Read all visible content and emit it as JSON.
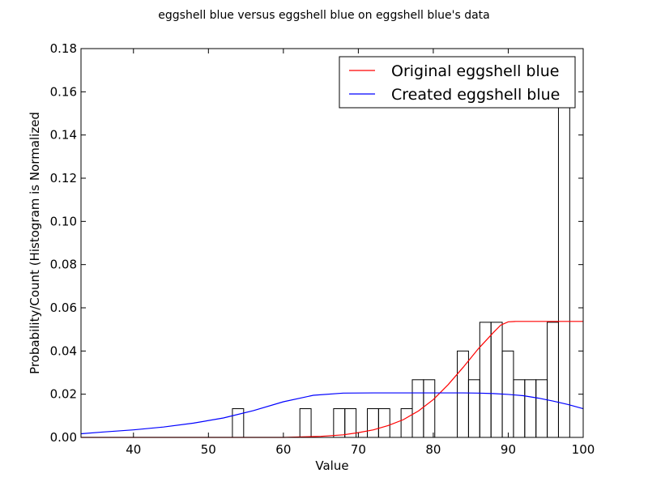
{
  "chart_data": {
    "type": "bar",
    "title": "eggshell blue versus eggshell blue on eggshell blue's data",
    "xlabel": "Value",
    "ylabel": "Probability/Count (Histogram is Normalized",
    "xlim": [
      33,
      100
    ],
    "ylim": [
      0,
      0.18
    ],
    "xticks": [
      40,
      50,
      60,
      70,
      80,
      90,
      100
    ],
    "yticks": [
      0.0,
      0.02,
      0.04,
      0.06,
      0.08,
      0.1,
      0.12,
      0.14,
      0.16,
      0.18
    ],
    "grid": false,
    "legend_position": "top-right",
    "histogram": {
      "bin_edges": [
        53.2,
        54.7,
        56.2,
        57.7,
        59.2,
        60.7,
        62.2,
        63.7,
        65.2,
        66.7,
        68.2,
        69.7,
        71.2,
        72.7,
        74.2,
        75.7,
        77.2,
        78.7,
        80.2,
        81.7,
        83.2,
        84.7,
        86.2,
        87.7,
        89.2,
        90.7,
        92.2,
        93.7,
        95.2,
        96.7,
        98.2,
        99.7
      ],
      "values": [
        0.0133,
        0,
        0,
        0,
        0,
        0,
        0.0133,
        0,
        0,
        0.0133,
        0.0133,
        0,
        0.0133,
        0.0133,
        0,
        0.0133,
        0.0267,
        0.0267,
        0,
        0,
        0.04,
        0.0267,
        0.0533,
        0.0533,
        0.04,
        0.0267,
        0.0267,
        0.0267,
        0.0533,
        0.16,
        0
      ]
    },
    "series": [
      {
        "name": "Original eggshell blue",
        "color": "#ff0000",
        "x": [
          33,
          60,
          65,
          68,
          70,
          72,
          74,
          76,
          78,
          80,
          82,
          84,
          86,
          88,
          89,
          90,
          91,
          92,
          95,
          100
        ],
        "y": [
          0,
          0,
          0.0005,
          0.0012,
          0.0022,
          0.0035,
          0.0055,
          0.0082,
          0.0122,
          0.0175,
          0.0245,
          0.0325,
          0.041,
          0.0485,
          0.052,
          0.0535,
          0.0537,
          0.0537,
          0.0537,
          0.0537
        ]
      },
      {
        "name": "Created eggshell blue",
        "color": "#0000ff",
        "x": [
          33,
          36,
          40,
          44,
          48,
          52,
          56,
          60,
          64,
          68,
          72,
          76,
          80,
          84,
          86,
          88,
          90,
          92,
          94,
          96,
          98,
          100
        ],
        "y": [
          0.0017,
          0.0025,
          0.0035,
          0.0048,
          0.0066,
          0.009,
          0.0124,
          0.0165,
          0.0195,
          0.0205,
          0.0206,
          0.0206,
          0.0206,
          0.0206,
          0.0205,
          0.0203,
          0.0199,
          0.0193,
          0.0182,
          0.0168,
          0.0152,
          0.0133
        ]
      }
    ]
  }
}
